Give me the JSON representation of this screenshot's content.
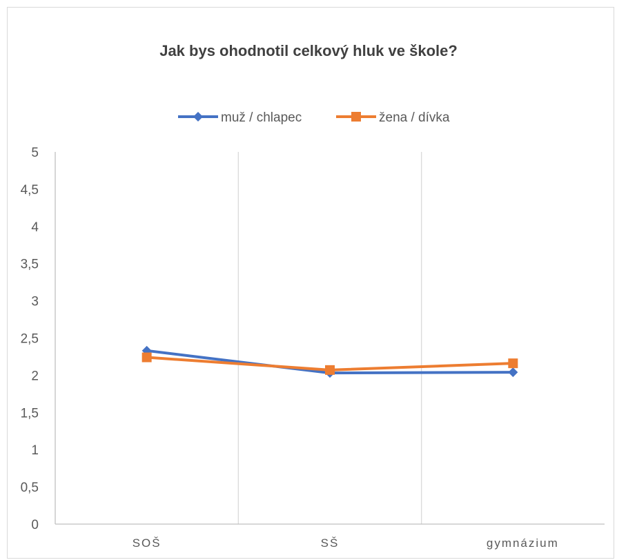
{
  "chart_data": {
    "type": "line",
    "title": "Jak bys ohodnotil celkový hluk ve škole?",
    "categories": [
      "SOŠ",
      "SŠ",
      "gymnázium"
    ],
    "series": [
      {
        "name": "muž / chlapec",
        "color": "#4472c4",
        "marker": "diamond",
        "values": [
          2.33,
          2.03,
          2.04
        ]
      },
      {
        "name": "žena / dívka",
        "color": "#ed7d31",
        "marker": "square",
        "values": [
          2.24,
          2.07,
          2.16
        ]
      }
    ],
    "ylim": [
      0,
      5
    ],
    "yticks": [
      "0",
      "0,5",
      "1",
      "1,5",
      "2",
      "2,5",
      "3",
      "3,5",
      "4",
      "4,5",
      "5"
    ],
    "xlabel": "",
    "ylabel": "",
    "legend_position": "top",
    "gridlines": "vertical between categories",
    "colors": {
      "axis": "#bfbfbf",
      "grid": "#d9d9d9",
      "text": "#595959",
      "title": "#404040"
    }
  }
}
